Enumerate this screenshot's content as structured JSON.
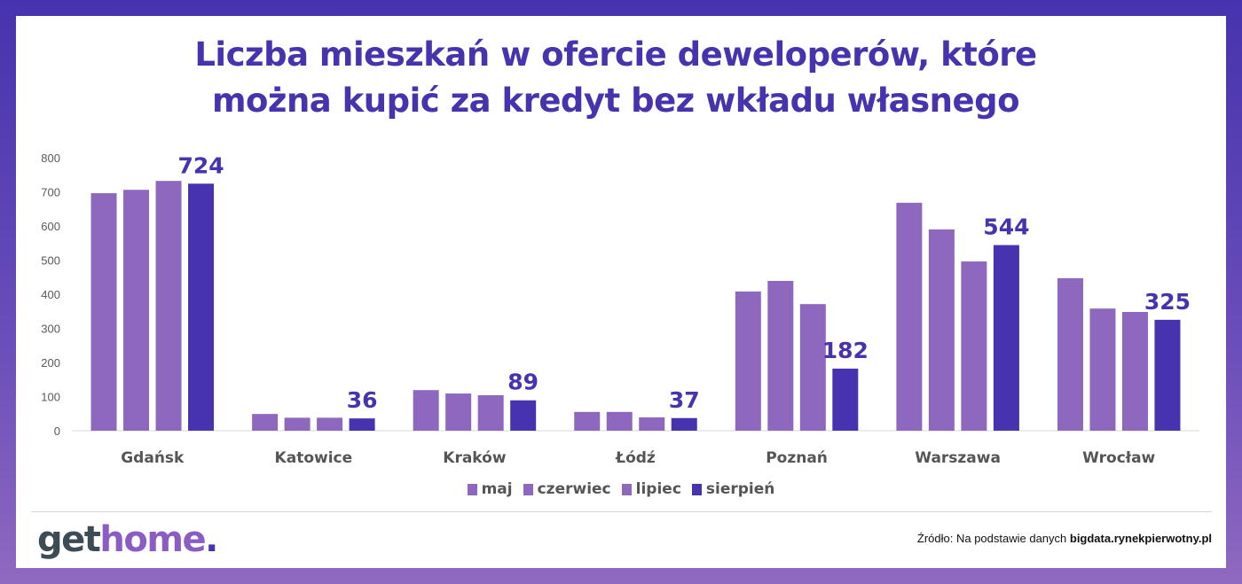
{
  "chart_data": {
    "type": "bar",
    "title": "Liczba mieszkań w ofercie deweloperów, które można kupić za kredyt bez wkładu własnego",
    "title_lines": [
      "Liczba mieszkań w ofercie deweloperów, które",
      "można kupić za kredyt bez wkładu własnego"
    ],
    "categories": [
      "Gdańsk",
      "Katowice",
      "Kraków",
      "Łódź",
      "Poznań",
      "Warszawa",
      "Wrocław"
    ],
    "series": [
      {
        "name": "maj",
        "color": "#8e68be",
        "values": [
          696,
          49,
          119,
          55,
          408,
          668,
          447
        ]
      },
      {
        "name": "czerwiec",
        "color": "#8e68be",
        "values": [
          706,
          38,
          109,
          55,
          439,
          590,
          358
        ]
      },
      {
        "name": "lipiec",
        "color": "#8e68be",
        "values": [
          732,
          38,
          104,
          39,
          371,
          496,
          348
        ]
      },
      {
        "name": "sierpień",
        "color": "#4733ae",
        "values": [
          724,
          36,
          89,
          37,
          182,
          544,
          325
        ]
      }
    ],
    "data_labels_series": "sierpień",
    "ylim": [
      0,
      800
    ],
    "yticks": [
      0,
      100,
      200,
      300,
      400,
      500,
      600,
      700,
      800
    ],
    "grid": false,
    "legend_position": "bottom"
  },
  "branding": {
    "logo_part1": "get",
    "logo_part2": "home",
    "logo_dot": "."
  },
  "source": {
    "prefix": "Źródło: Na podstawie danych ",
    "site": "bigdata.rynekpierwotny.pl"
  }
}
